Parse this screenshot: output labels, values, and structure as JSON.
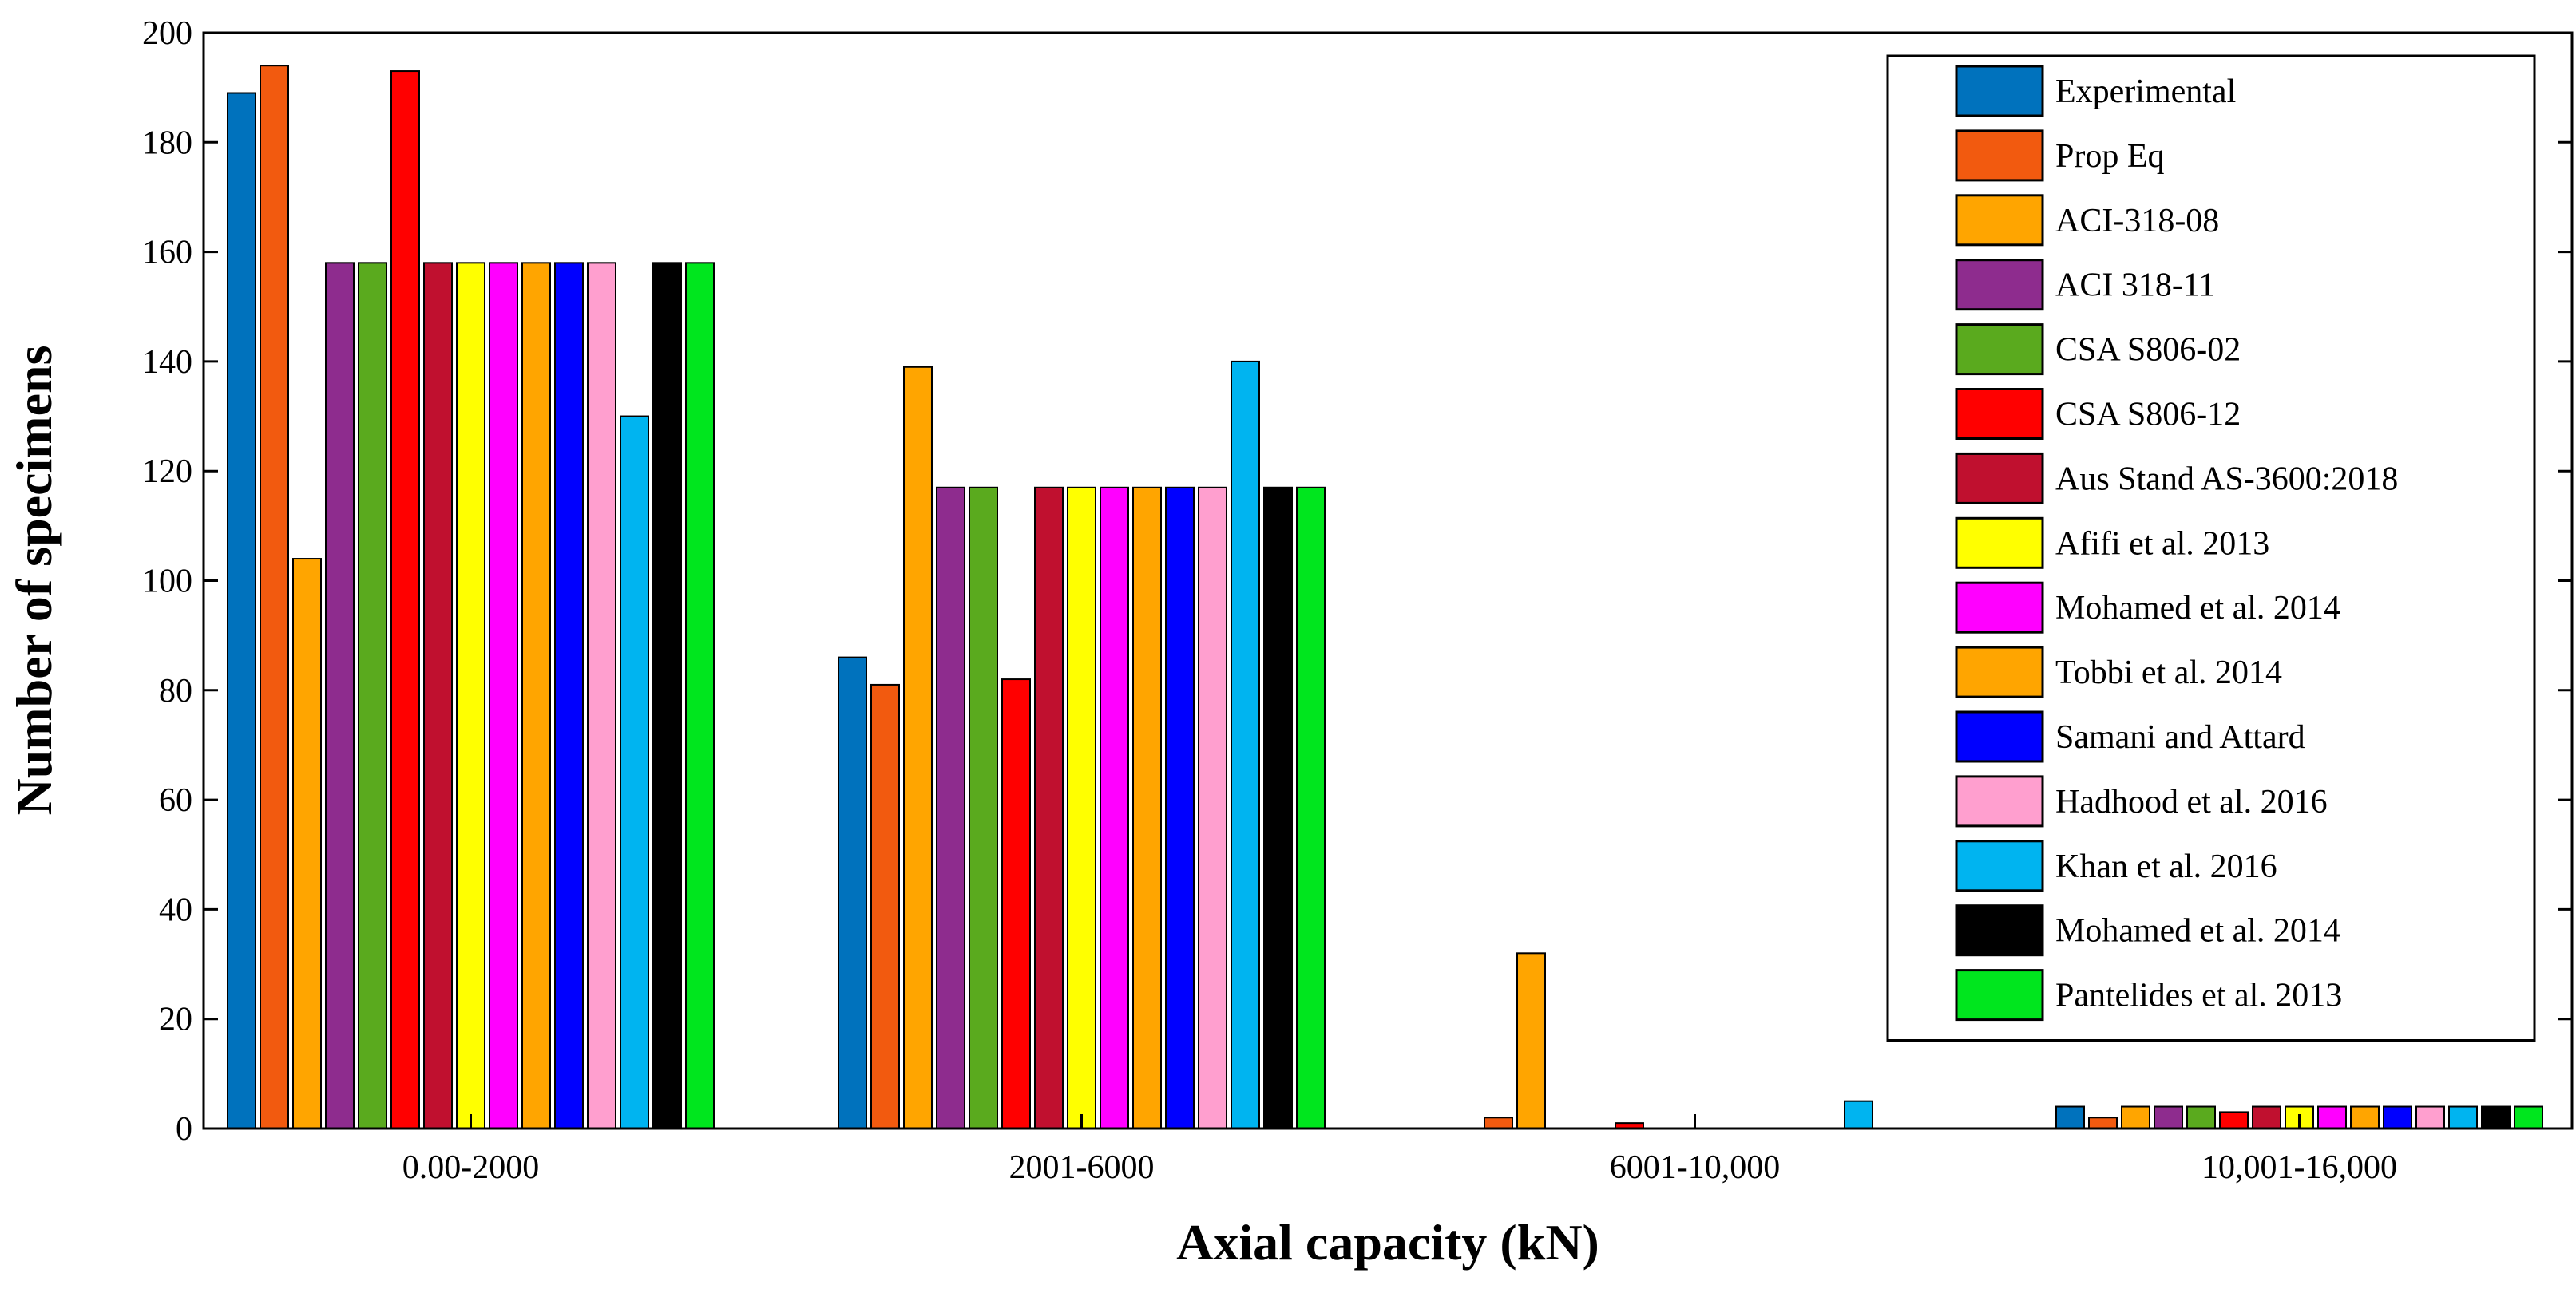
{
  "chart_data": {
    "type": "bar",
    "title": "",
    "xlabel": "Axial capacity (kN)",
    "ylabel": "Number of specimens",
    "ylim": [
      0,
      200
    ],
    "yticks": [
      "0",
      "20",
      "40",
      "60",
      "80",
      "100",
      "120",
      "140",
      "160",
      "180",
      "200"
    ],
    "categories": [
      "0.00-2000",
      "2001-6000",
      "6001-10,000",
      "10,001-16,000"
    ],
    "legend_position": "top-right",
    "series": [
      {
        "name": "Experimental",
        "color": "#0072BD",
        "values": [
          189,
          86,
          0,
          4
        ]
      },
      {
        "name": "Prop Eq",
        "color": "#F25A0F",
        "values": [
          194,
          81,
          2,
          2
        ]
      },
      {
        "name": "ACI-318-08",
        "color": "#FFA500",
        "values": [
          104,
          139,
          32,
          4
        ]
      },
      {
        "name": "ACI 318-11",
        "color": "#8E2C8E",
        "values": [
          158,
          117,
          0,
          4
        ]
      },
      {
        "name": "CSA S806-02",
        "color": "#5AAA1E",
        "values": [
          158,
          117,
          0,
          4
        ]
      },
      {
        "name": "CSA S806-12",
        "color": "#FF0000",
        "values": [
          193,
          82,
          1,
          3
        ]
      },
      {
        "name": "Aus Stand AS-3600:2018",
        "color": "#C0102F",
        "values": [
          158,
          117,
          0,
          4
        ]
      },
      {
        "name": "Afifi et al. 2013",
        "color": "#FFFF00",
        "values": [
          158,
          117,
          0,
          4
        ]
      },
      {
        "name": "Mohamed et al. 2014",
        "color": "#FF00FF",
        "values": [
          158,
          117,
          0,
          4
        ]
      },
      {
        "name": "Tobbi et al. 2014",
        "color": "#FFA500",
        "values": [
          158,
          117,
          0,
          4
        ]
      },
      {
        "name": "Samani and Attard",
        "color": "#0000FF",
        "values": [
          158,
          117,
          0,
          4
        ]
      },
      {
        "name": "Hadhood et al. 2016",
        "color": "#FF9FCF",
        "values": [
          158,
          117,
          0,
          4
        ]
      },
      {
        "name": "Khan et al. 2016",
        "color": "#00B4F0",
        "values": [
          130,
          140,
          5,
          4
        ]
      },
      {
        "name": "Mohamed et al. 2014",
        "color": "#000000",
        "values": [
          158,
          117,
          0,
          4
        ]
      },
      {
        "name": "Pantelides et al. 2013",
        "color": "#00E61E",
        "values": [
          158,
          117,
          0,
          4
        ]
      }
    ]
  }
}
